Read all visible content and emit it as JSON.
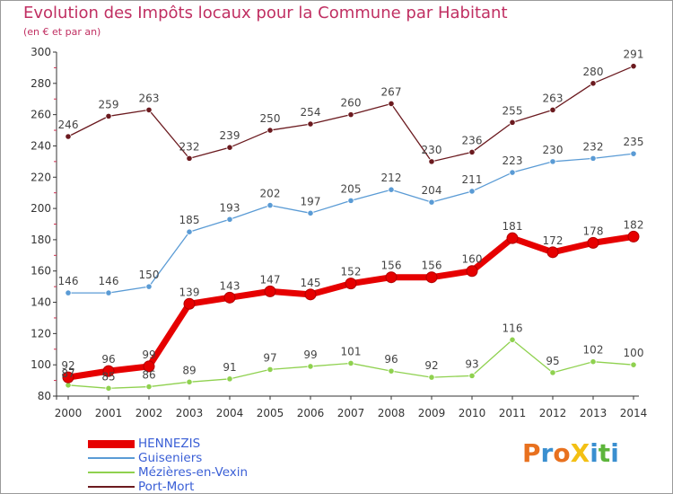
{
  "header": {
    "title": "Evolution des Impôts locaux pour la Commune par Habitant",
    "subtitle": "(en € et par an)"
  },
  "logo": {
    "text": "ProXiti",
    "letters": [
      {
        "char": "P",
        "color": "#e8711f"
      },
      {
        "char": "r",
        "color": "#3a8fd0"
      },
      {
        "char": "o",
        "color": "#e8711f"
      },
      {
        "char": "X",
        "color": "#f3c014"
      },
      {
        "char": "i",
        "color": "#3a8fd0"
      },
      {
        "char": "t",
        "color": "#5db53b"
      },
      {
        "char": "i",
        "color": "#3a8fd0"
      }
    ]
  },
  "chart_data": {
    "type": "line",
    "title": "Evolution des Impôts locaux pour la Commune par Habitant",
    "subtitle": "(en € et par an)",
    "x": [
      "2000",
      "2001",
      "2002",
      "2003",
      "2004",
      "2005",
      "2006",
      "2007",
      "2008",
      "2009",
      "2010",
      "2011",
      "2012",
      "2013",
      "2014"
    ],
    "ylim": [
      80,
      300
    ],
    "yticks": [
      80,
      100,
      120,
      140,
      160,
      180,
      200,
      220,
      240,
      260,
      280,
      300
    ],
    "grid": false,
    "legend_position": "bottom-left",
    "series": [
      {
        "name": "HENNEZIS",
        "color": "#e60000",
        "values": [
          92,
          96,
          99,
          139,
          143,
          147,
          145,
          152,
          156,
          156,
          160,
          181,
          172,
          178,
          182
        ]
      },
      {
        "name": "Guiseniers",
        "color": "#5a9bd5",
        "values": [
          146,
          146,
          150,
          185,
          193,
          202,
          197,
          205,
          212,
          204,
          211,
          223,
          230,
          232,
          235
        ]
      },
      {
        "name": "Mézières-en-Vexin",
        "color": "#8fd14f",
        "values": [
          87,
          85,
          86,
          89,
          91,
          97,
          99,
          101,
          96,
          92,
          93,
          116,
          95,
          102,
          100
        ]
      },
      {
        "name": "Port-Mort",
        "color": "#6b1a1f",
        "values": [
          246,
          259,
          263,
          232,
          239,
          250,
          254,
          260,
          267,
          230,
          236,
          255,
          263,
          280,
          291
        ]
      }
    ]
  }
}
